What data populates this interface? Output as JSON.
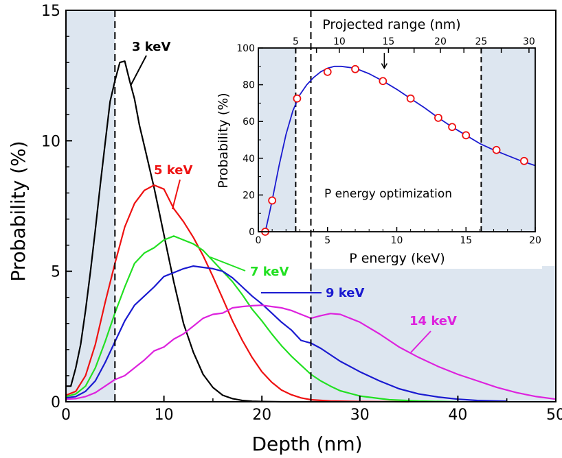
{
  "chart_data": [
    {
      "type": "line",
      "title": "",
      "xlabel": "Depth (nm)",
      "ylabel": "Probability (%)",
      "xlim": [
        0,
        50
      ],
      "ylim": [
        0,
        15
      ],
      "xticks": [
        0,
        10,
        20,
        30,
        40,
        50
      ],
      "xtick_labels": [
        "0",
        "10",
        "20",
        "30",
        "40",
        "50"
      ],
      "yticks": [
        0,
        5,
        10,
        15
      ],
      "ytick_labels": [
        "0",
        "5",
        "10",
        "15"
      ],
      "shaded_regions": [
        {
          "xmin": 0,
          "xmax": 5,
          "ymin": 0,
          "ymax": 15
        },
        {
          "xmin": 25,
          "xmax": 50,
          "ymin": 0,
          "ymax": 5.2
        }
      ],
      "reference_lines_x": [
        5,
        25
      ],
      "series": [
        {
          "name": "3 keV",
          "label": "3 keV",
          "color": "#000000",
          "x": [
            0,
            0.5,
            1,
            1.5,
            2,
            2.5,
            3,
            3.5,
            4,
            4.5,
            5,
            5.5,
            6,
            6.5,
            7,
            7.5,
            8,
            8.5,
            9,
            9.5,
            10,
            11,
            12,
            13,
            14,
            15,
            16,
            17,
            18,
            19,
            20,
            22,
            25,
            30
          ],
          "y": [
            0.6,
            0.6,
            1.3,
            2.2,
            3.5,
            5,
            6.6,
            8.3,
            9.9,
            11.5,
            12.3,
            13,
            13.05,
            12.3,
            11.6,
            10.6,
            9.8,
            9,
            8.2,
            7.3,
            6.4,
            4.6,
            3,
            1.9,
            1.05,
            0.55,
            0.25,
            0.12,
            0.05,
            0.02,
            0.01,
            0,
            0,
            0
          ]
        },
        {
          "name": "5 keV",
          "label": "5 keV",
          "color": "#ee1111",
          "x": [
            0,
            1,
            2,
            3,
            4,
            5,
            6,
            7,
            8,
            9,
            10,
            11,
            12,
            13,
            14,
            15,
            16,
            17,
            18,
            19,
            20,
            21,
            22,
            23,
            24,
            25,
            27,
            30,
            35
          ],
          "y": [
            0.25,
            0.4,
            1,
            2.2,
            3.8,
            5.3,
            6.7,
            7.6,
            8.1,
            8.3,
            8.15,
            7.4,
            6.9,
            6.3,
            5.6,
            4.8,
            3.95,
            3.1,
            2.35,
            1.7,
            1.15,
            0.75,
            0.45,
            0.27,
            0.15,
            0.08,
            0.03,
            0.01,
            0
          ]
        },
        {
          "name": "7 keV",
          "label": "7 keV",
          "color": "#22e022",
          "x": [
            0,
            1,
            2,
            3,
            4,
            5,
            6,
            7,
            8,
            9,
            10,
            11,
            12,
            13,
            14,
            15,
            16,
            17,
            18,
            19,
            20,
            21,
            22,
            23,
            24,
            25,
            26,
            27,
            28,
            30,
            33,
            36,
            40
          ],
          "y": [
            0.2,
            0.3,
            0.6,
            1.3,
            2.3,
            3.4,
            4.4,
            5.3,
            5.7,
            5.9,
            6.2,
            6.35,
            6.2,
            6.05,
            5.8,
            5.4,
            5,
            4.6,
            4.1,
            3.55,
            3.1,
            2.6,
            2.15,
            1.75,
            1.4,
            1.05,
            0.8,
            0.6,
            0.42,
            0.22,
            0.08,
            0.03,
            0
          ]
        },
        {
          "name": "9 keV",
          "label": "9 keV",
          "color": "#1a1ad0",
          "x": [
            0,
            1,
            2,
            3,
            4,
            5,
            6,
            7,
            8,
            9,
            10,
            11,
            12,
            13,
            14,
            15,
            16,
            17,
            18,
            19,
            20,
            21,
            22,
            23,
            24,
            25,
            26,
            27,
            28,
            30,
            32,
            34,
            36,
            38,
            40,
            42,
            45
          ],
          "y": [
            0.15,
            0.2,
            0.4,
            0.8,
            1.5,
            2.3,
            3.1,
            3.7,
            4.05,
            4.4,
            4.8,
            4.95,
            5.1,
            5.2,
            5.15,
            5.1,
            5,
            4.75,
            4.4,
            4.05,
            3.75,
            3.4,
            3.05,
            2.75,
            2.35,
            2.25,
            2.05,
            1.8,
            1.55,
            1.15,
            0.8,
            0.5,
            0.3,
            0.18,
            0.1,
            0.05,
            0.02
          ]
        },
        {
          "name": "14 keV",
          "label": "14 keV",
          "color": "#dd22dd",
          "x": [
            0,
            1,
            2,
            3,
            4,
            5,
            6,
            7,
            8,
            9,
            10,
            11,
            12,
            13,
            14,
            15,
            16,
            17,
            18,
            19,
            20,
            21,
            22,
            23,
            24,
            25,
            26,
            27,
            28,
            29,
            30,
            32,
            34,
            36,
            38,
            40,
            42,
            44,
            46,
            48,
            50
          ],
          "y": [
            0.1,
            0.12,
            0.2,
            0.35,
            0.6,
            0.85,
            1.0,
            1.3,
            1.6,
            1.95,
            2.1,
            2.4,
            2.6,
            2.9,
            3.2,
            3.35,
            3.4,
            3.6,
            3.65,
            3.68,
            3.7,
            3.65,
            3.6,
            3.5,
            3.35,
            3.2,
            3.3,
            3.38,
            3.35,
            3.2,
            3.05,
            2.6,
            2.1,
            1.7,
            1.35,
            1.05,
            0.8,
            0.55,
            0.35,
            0.2,
            0.1
          ]
        }
      ]
    },
    {
      "type": "line",
      "title": "P energy optimization",
      "xlabel": "P energy (keV)",
      "ylabel": "Probability (%)",
      "top_axis_label": "Projected range (nm)",
      "xlim": [
        0,
        20
      ],
      "ylim": [
        0,
        100
      ],
      "xticks": [
        0,
        5,
        10,
        15,
        20
      ],
      "xtick_labels": [
        "0",
        "5",
        "10",
        "15",
        "20"
      ],
      "yticks": [
        0,
        20,
        40,
        60,
        80,
        100
      ],
      "ytick_labels": [
        "0",
        "20",
        "40",
        "60",
        "80",
        "100"
      ],
      "top_ticks_energy": [
        2.7,
        4.2,
        5.85,
        7.6,
        9.4,
        11.25,
        13.15,
        14.85,
        16.1,
        17.55,
        19.55
      ],
      "top_tick_labels": [
        "5",
        "10",
        "15",
        "20",
        "25",
        "30"
      ],
      "top_tick_label_positions": [
        2.7,
        5.85,
        9.4,
        13.15,
        16.1,
        19.55
      ],
      "shaded_regions": [
        {
          "xmin": 0,
          "xmax": 2.7
        },
        {
          "xmin": 16.1,
          "xmax": 20
        }
      ],
      "reference_lines_x": [
        2.7,
        16.1
      ],
      "arrow_at_x": 9.1,
      "fit_curve": {
        "x": [
          0.5,
          0.8,
          1,
          1.5,
          2,
          2.5,
          3,
          3.5,
          4,
          4.5,
          5,
          5.5,
          6,
          7,
          8,
          9,
          10,
          11,
          12,
          13,
          14,
          15,
          16,
          17,
          18,
          19,
          20
        ],
        "y": [
          0,
          10,
          17,
          36,
          53,
          66,
          74.5,
          80,
          84,
          87,
          89,
          90,
          90,
          89,
          86,
          82,
          77.5,
          72.5,
          67.5,
          62,
          57,
          52.5,
          48,
          44.5,
          41.5,
          38.5,
          36
        ]
      },
      "points": {
        "x": [
          0.5,
          1,
          2.8,
          5,
          7,
          9,
          11,
          13,
          14,
          15,
          17.2,
          19.2
        ],
        "y": [
          0,
          17,
          72.5,
          87,
          88.5,
          82,
          72.5,
          62,
          57,
          52.5,
          44.5,
          38.5
        ]
      }
    }
  ]
}
